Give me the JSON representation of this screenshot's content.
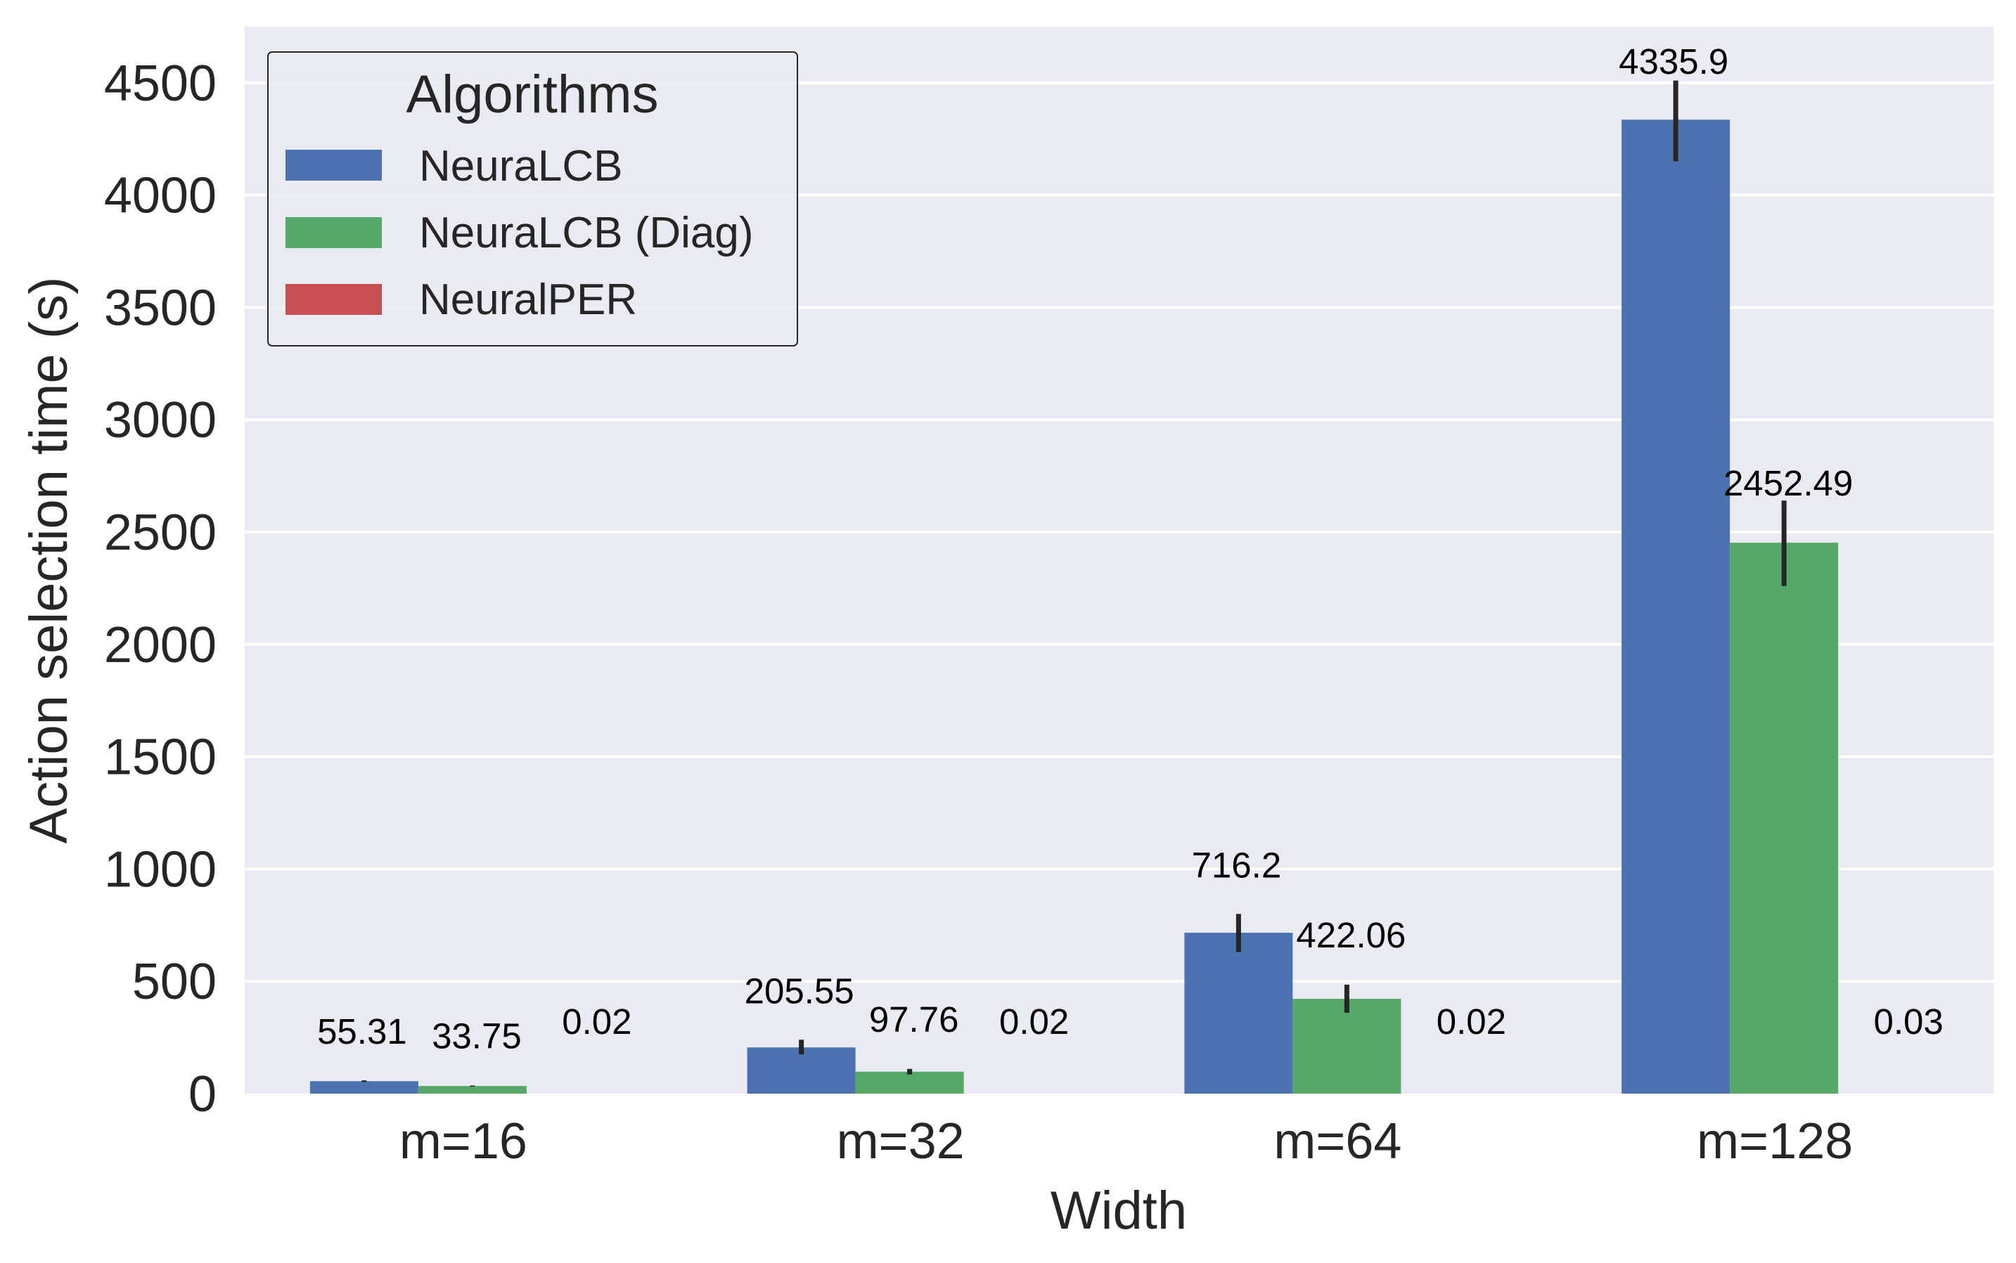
{
  "chart_data": {
    "type": "bar",
    "title": "",
    "xlabel": "Width",
    "ylabel": "Action selection time (s)",
    "categories": [
      "m=16",
      "m=32",
      "m=64",
      "m=128"
    ],
    "ylim": [
      0,
      4750
    ],
    "yticks": [
      0,
      500,
      1000,
      1500,
      2000,
      2500,
      3000,
      3500,
      4000,
      4500
    ],
    "grid": true,
    "legend": {
      "title": "Algorithms",
      "position": "top-left"
    },
    "series": [
      {
        "name": "NeuraLCB",
        "color": "#4c72b0",
        "values": [
          55.31,
          205.55,
          716.2,
          4335.9
        ],
        "labels": [
          "55.31",
          "205.55",
          "716.2",
          "4335.9"
        ],
        "err_low": [
          52,
          175,
          630,
          4150
        ],
        "err_high": [
          59,
          240,
          800,
          4510
        ]
      },
      {
        "name": "NeuraLCB (Diag)",
        "color": "#55a868",
        "values": [
          33.75,
          97.76,
          422.06,
          2452.49
        ],
        "labels": [
          "33.75",
          "97.76",
          "422.06",
          "2452.49"
        ],
        "err_low": [
          31,
          85,
          360,
          2260
        ],
        "err_high": [
          36,
          110,
          485,
          2640
        ]
      },
      {
        "name": "NeuralPER",
        "color": "#c44e52",
        "values": [
          0.02,
          0.02,
          0.02,
          0.03
        ],
        "labels": [
          "0.02",
          "0.02",
          "0.02",
          "0.03"
        ],
        "err_low": [
          0.02,
          0.02,
          0.02,
          0.03
        ],
        "err_high": [
          0.02,
          0.02,
          0.02,
          0.03
        ]
      }
    ]
  }
}
